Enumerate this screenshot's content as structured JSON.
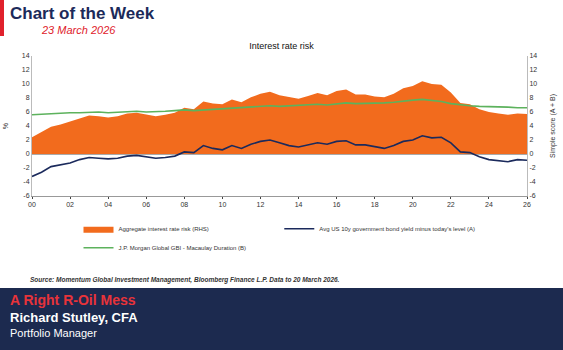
{
  "header": {
    "title": "Chart of the Week",
    "date": "23 March 2026"
  },
  "source": "Source: Momentum Global Investment Management, Bloomberg Finance L.P. Data to 20 March 2026.",
  "footer": {
    "title": "A Right R-Oil Mess",
    "name": "Richard Stutley, CFA",
    "role": "Portfolio Manager"
  },
  "chart_data": {
    "type": "line",
    "title": "Interest rate risk",
    "y_label": "%",
    "y2_label": "Simple score (A + B)",
    "grid": false,
    "legend": "bottom",
    "x": [
      2000,
      2000.5,
      2001,
      2001.5,
      2002,
      2002.5,
      2003,
      2003.5,
      2004,
      2004.5,
      2005,
      2005.5,
      2006,
      2006.5,
      2007,
      2007.5,
      2008,
      2008.5,
      2009,
      2009.5,
      2010,
      2010.5,
      2011,
      2011.5,
      2012,
      2012.5,
      2013,
      2013.5,
      2014,
      2014.5,
      2015,
      2015.5,
      2016,
      2016.5,
      2017,
      2017.5,
      2018,
      2018.5,
      2019,
      2019.5,
      2020,
      2020.5,
      2021,
      2021.5,
      2022,
      2022.5,
      2023,
      2023.5,
      2024,
      2024.5,
      2025,
      2025.5,
      2026
    ],
    "xlim": [
      2000,
      2026
    ],
    "xticks": [
      {
        "value": 2000,
        "label": "00"
      },
      {
        "value": 2002,
        "label": "02"
      },
      {
        "value": 2004,
        "label": "04"
      },
      {
        "value": 2006,
        "label": "06"
      },
      {
        "value": 2008,
        "label": "08"
      },
      {
        "value": 2010,
        "label": "10"
      },
      {
        "value": 2012,
        "label": "12"
      },
      {
        "value": 2014,
        "label": "14"
      },
      {
        "value": 2016,
        "label": "16"
      },
      {
        "value": 2018,
        "label": "18"
      },
      {
        "value": 2020,
        "label": "20"
      },
      {
        "value": 2022,
        "label": "22"
      },
      {
        "value": 2024,
        "label": "24"
      },
      {
        "value": 2026,
        "label": "26"
      }
    ],
    "ylim": [
      -6,
      14
    ],
    "yticks": [
      -6,
      -4,
      -2,
      0,
      2,
      4,
      6,
      8,
      10,
      12,
      14
    ],
    "y2lim": [
      -6,
      14
    ],
    "y2ticks": [
      -6,
      -4,
      -2,
      0,
      2,
      4,
      6,
      8,
      10,
      12,
      14
    ],
    "series": [
      {
        "name": "Aggregate interest rate risk (RHS)",
        "type": "area",
        "axis": "y2",
        "color": "#f26b1d",
        "values": [
          2.4,
          3.1,
          3.9,
          4.2,
          4.6,
          5.1,
          5.5,
          5.4,
          5.2,
          5.4,
          5.8,
          5.9,
          5.6,
          5.4,
          5.6,
          5.9,
          6.6,
          6.4,
          7.5,
          7.2,
          7.1,
          7.8,
          7.4,
          8.1,
          8.6,
          8.9,
          8.4,
          8.1,
          7.9,
          8.3,
          8.7,
          8.4,
          9.0,
          9.2,
          8.5,
          8.5,
          8.2,
          8.1,
          8.6,
          9.4,
          9.7,
          10.4,
          10.0,
          9.9,
          8.8,
          7.3,
          7.1,
          6.4,
          6.0,
          5.8,
          5.6,
          5.8,
          5.7
        ]
      },
      {
        "name": "Avg US 10y government bond yield minus today's level (A)",
        "type": "line",
        "color": "#1b2a5c",
        "values": [
          -3.2,
          -2.6,
          -1.8,
          -1.6,
          -1.3,
          -0.8,
          -0.5,
          -0.6,
          -0.7,
          -0.6,
          -0.3,
          -0.2,
          -0.4,
          -0.6,
          -0.5,
          -0.3,
          0.3,
          0.2,
          1.2,
          0.8,
          0.6,
          1.2,
          0.8,
          1.4,
          1.8,
          2.0,
          1.6,
          1.2,
          1.0,
          1.3,
          1.6,
          1.4,
          1.8,
          1.9,
          1.3,
          1.3,
          1.0,
          0.8,
          1.2,
          1.8,
          2.0,
          2.6,
          2.3,
          2.4,
          1.6,
          0.3,
          0.2,
          -0.4,
          -0.8,
          -0.9,
          -1.1,
          -0.8,
          -0.9
        ]
      },
      {
        "name": "J.P. Morgan Global GBI - Macaulay Duration (B)",
        "type": "line",
        "color": "#5db25d",
        "values": [
          5.6,
          5.7,
          5.7,
          5.8,
          5.9,
          5.9,
          6.0,
          6.0,
          5.9,
          6.0,
          6.1,
          6.1,
          6.0,
          6.0,
          6.1,
          6.2,
          6.3,
          6.2,
          6.3,
          6.4,
          6.5,
          6.6,
          6.6,
          6.7,
          6.8,
          6.9,
          6.8,
          6.9,
          6.9,
          7.0,
          7.1,
          7.0,
          7.2,
          7.3,
          7.2,
          7.2,
          7.2,
          7.3,
          7.4,
          7.6,
          7.7,
          7.8,
          7.7,
          7.5,
          7.2,
          7.0,
          6.9,
          6.8,
          6.8,
          6.7,
          6.7,
          6.6,
          6.6
        ]
      }
    ]
  }
}
